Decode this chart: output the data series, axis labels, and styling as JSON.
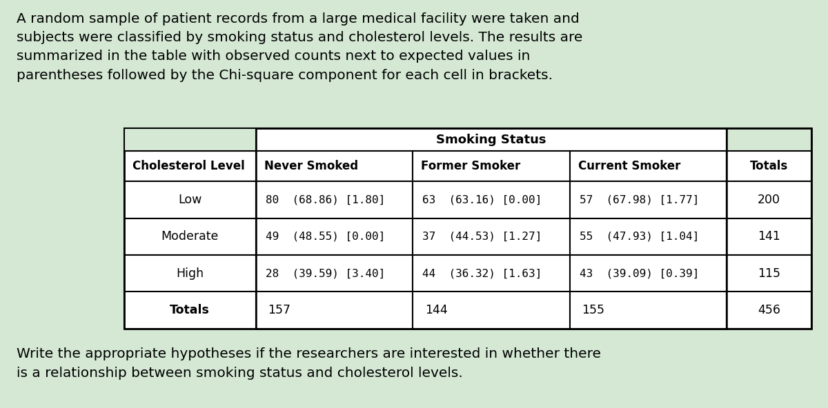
{
  "background_color": "#d4e8d4",
  "intro_text": "A random sample of patient records from a large medical facility were taken and\nsubjects were classified by smoking status and cholesterol levels. The results are\nsummarized in the table with observed counts next to expected values in\nparentheses followed by the Chi-square component for each cell in brackets.",
  "footer_text": "Write the appropriate hypotheses if the researchers are interested in whether there\nis a relationship between smoking status and cholesterol levels.",
  "table": {
    "smoking_status_header": "Smoking Status",
    "col_headers": [
      "Cholesterol Level",
      "Never Smoked",
      "Former Smoker",
      "Current Smoker",
      "Totals"
    ],
    "col_headers_underlined": [
      true,
      true,
      true,
      true,
      false
    ],
    "rows": [
      {
        "label": "Low",
        "never": "80  (68.86) [1.80]",
        "former": "63  (63.16) [0.00]",
        "current": "57  (67.98) [1.77]",
        "total": "200"
      },
      {
        "label": "Moderate",
        "never": "49  (48.55) [0.00]",
        "former": "37  (44.53) [1.27]",
        "current": "55  (47.93) [1.04]",
        "total": "141"
      },
      {
        "label": "High",
        "never": "28  (39.59) [3.40]",
        "former": "44  (36.32) [1.63]",
        "current": "43  (39.09) [0.39]",
        "total": "115"
      }
    ],
    "totals_row": {
      "label": "Totals",
      "never": "157",
      "former": "144",
      "current": "155",
      "total": "456"
    }
  }
}
